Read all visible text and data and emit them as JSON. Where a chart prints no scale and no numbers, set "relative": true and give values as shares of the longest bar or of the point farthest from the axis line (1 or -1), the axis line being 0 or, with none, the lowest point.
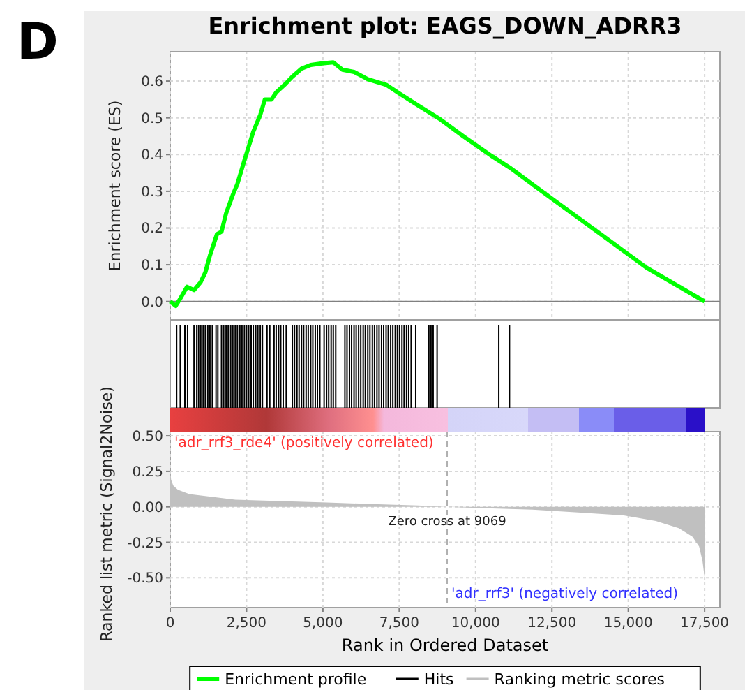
{
  "chart_data": [
    {
      "type": "line",
      "title": "Enrichment plot: EAGS_DOWN_ADRR3",
      "ylabel": "Enrichment score (ES)",
      "annotations": [
        "D"
      ],
      "series": [
        {
          "name": "Enrichment profile",
          "color": "#00ff00",
          "x": [
            0,
            180,
            330,
            550,
            780,
            1000,
            1150,
            1300,
            1530,
            1680,
            1830,
            2050,
            2200,
            2430,
            2720,
            2950,
            3100,
            3320,
            3470,
            3770,
            4000,
            4300,
            4600,
            4970,
            5340,
            5640,
            6020,
            6470,
            7070,
            7510,
            8110,
            8860,
            9610,
            10510,
            11110,
            12600,
            14100,
            15600,
            17500
          ],
          "values": [
            0,
            -0.012,
            0.008,
            0.04,
            0.031,
            0.053,
            0.079,
            0.125,
            0.183,
            0.19,
            0.24,
            0.29,
            0.32,
            0.384,
            0.462,
            0.508,
            0.55,
            0.55,
            0.569,
            0.592,
            0.612,
            0.634,
            0.644,
            0.648,
            0.651,
            0.631,
            0.625,
            0.605,
            0.59,
            0.566,
            0.534,
            0.495,
            0.449,
            0.397,
            0.365,
            0.274,
            0.183,
            0.092,
            0
          ]
        }
      ],
      "xlim": [
        0,
        18000
      ],
      "ylim": [
        -0.05,
        0.68
      ],
      "xticks": [
        {
          "value": 0,
          "label": null
        },
        {
          "value": 2500,
          "label": null
        },
        {
          "value": 5000,
          "label": null
        },
        {
          "value": 7500,
          "label": null
        },
        {
          "value": 10000,
          "label": null
        },
        {
          "value": 12500,
          "label": null
        },
        {
          "value": 15000,
          "label": null
        },
        {
          "value": 17500,
          "label": null
        }
      ],
      "yticks": [
        {
          "value": 0,
          "label": "0.0"
        },
        0.1,
        0.2,
        0.3,
        0.4,
        0.5,
        0.6
      ],
      "ref_lines": [
        {
          "axis": "y",
          "value": 0,
          "color": "#808080",
          "line_style": "solid"
        }
      ],
      "tick_labels": "y",
      "grid": true,
      "legend": "bottom",
      "marker": "none",
      "line_style": "solid"
    },
    {
      "type": "bar",
      "relative": true,
      "series": [
        {
          "name": "Hits",
          "color": "#000000",
          "x": [
            210,
            330,
            480,
            570,
            780,
            870,
            930,
            1000,
            1080,
            1150,
            1230,
            1300,
            1380,
            1500,
            1560,
            1680,
            1750,
            1830,
            1900,
            1980,
            2050,
            2130,
            2200,
            2280,
            2350,
            2430,
            2500,
            2570,
            2650,
            2720,
            2800,
            2870,
            2950,
            3020,
            3170,
            3260,
            3400,
            3470,
            3550,
            3620,
            3700,
            3800,
            4000,
            4070,
            4150,
            4220,
            4300,
            4370,
            4450,
            4520,
            4600,
            4670,
            4750,
            4820,
            4900,
            5040,
            5120,
            5190,
            5270,
            5340,
            5420,
            5720,
            5790,
            5870,
            5940,
            6020,
            6090,
            6170,
            6240,
            6320,
            6390,
            6470,
            6540,
            6620,
            6690,
            6770,
            6840,
            6920,
            6990,
            7070,
            7140,
            7220,
            7290,
            7370,
            7440,
            7510,
            7590,
            7660,
            7740,
            7810,
            7890,
            8040,
            8470,
            8540,
            8610,
            8740,
            10760,
            11110
          ],
          "values": [
            1,
            1,
            1,
            1,
            1,
            1,
            1,
            1,
            1,
            1,
            1,
            1,
            1,
            1,
            1,
            1,
            1,
            1,
            1,
            1,
            1,
            1,
            1,
            1,
            1,
            1,
            1,
            1,
            1,
            1,
            1,
            1,
            1,
            1,
            1,
            1,
            1,
            1,
            1,
            1,
            1,
            1,
            1,
            1,
            1,
            1,
            1,
            1,
            1,
            1,
            1,
            1,
            1,
            1,
            1,
            1,
            1,
            1,
            1,
            1,
            1,
            1,
            1,
            1,
            1,
            1,
            1,
            1,
            1,
            1,
            1,
            1,
            1,
            1,
            1,
            1,
            1,
            1,
            1,
            1,
            1,
            1,
            1,
            1,
            1,
            1,
            1,
            1,
            1,
            1,
            1,
            1,
            1,
            1,
            1,
            1,
            1,
            1
          ]
        }
      ],
      "xlim": [
        0,
        18000
      ],
      "tick_labels": false,
      "legend": "bottom"
    },
    {
      "type": "area",
      "xlabel": "Rank in Ordered Dataset",
      "ylabel": "Ranked list metric (Signal2Noise)",
      "annotations": [
        "'adr_rrf3_rde4' (positively correlated)",
        "'adr_rrf3' (negatively correlated)"
      ],
      "series": [
        {
          "name": "Ranking metric scores",
          "color": "#c0c0c0",
          "x": [
            0,
            30,
            100,
            250,
            630,
            1380,
            2130,
            3620,
            5120,
            6620,
            8110,
            9069,
            10360,
            11860,
            13350,
            14850,
            15900,
            16650,
            17100,
            17320,
            17430,
            17500
          ],
          "values": [
            0.24,
            0.19,
            0.15,
            0.12,
            0.09,
            0.07,
            0.05,
            0.04,
            0.03,
            0.02,
            0.01,
            0,
            -0.01,
            -0.02,
            -0.04,
            -0.06,
            -0.1,
            -0.15,
            -0.21,
            -0.28,
            -0.38,
            -0.5
          ]
        }
      ],
      "xlim": [
        0,
        18000
      ],
      "ylim": [
        -0.71,
        0.53
      ],
      "xticks": [
        0,
        {
          "value": 2500,
          "label": "2,500"
        },
        {
          "value": 5000,
          "label": "5,000"
        },
        {
          "value": 7500,
          "label": "7,500"
        },
        {
          "value": 10000,
          "label": "10,000"
        },
        {
          "value": 12500,
          "label": "12,500"
        },
        {
          "value": 15000,
          "label": "15,000"
        },
        {
          "value": 17500,
          "label": "17,500"
        }
      ],
      "yticks": [
        {
          "value": -0.5,
          "label": "-0.50"
        },
        {
          "value": -0.25,
          "label": "-0.25"
        },
        {
          "value": 0,
          "label": "0.00"
        },
        {
          "value": 0.25,
          "label": "0.25"
        },
        {
          "value": 0.5,
          "label": "0.50"
        }
      ],
      "ref_lines": [
        {
          "axis": "x",
          "value": 9069,
          "label": "Zero cross at 9069",
          "color": "#b0b0b0",
          "line_style": "dashed"
        }
      ],
      "grid": true,
      "legend": "bottom"
    }
  ]
}
